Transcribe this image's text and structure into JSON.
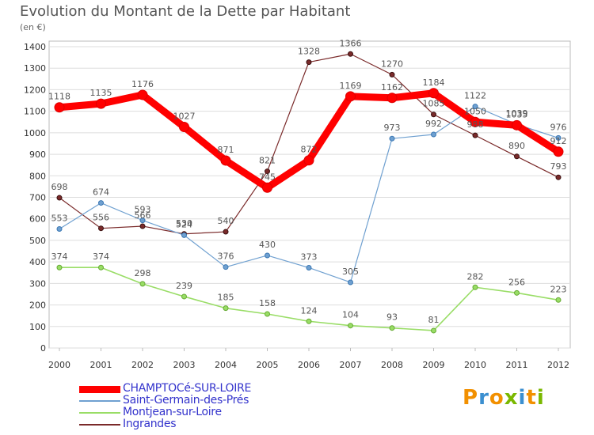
{
  "header": {
    "title": "Evolution du Montant de la Dette par Habitant",
    "unit": "(en €)"
  },
  "logo": {
    "text": "Proxiti",
    "colors": [
      "#f29000",
      "#3b8fd0",
      "#f29000",
      "#7ab800",
      "#3b8fd0",
      "#f29000",
      "#7ab800"
    ]
  },
  "colors": {
    "background": "#ffffff",
    "chart_border": "#bbbbbb",
    "grid": "#dddddd",
    "axis_text": "#333333",
    "label_text": "#555555"
  },
  "chart_data": {
    "type": "line",
    "title": "Evolution du Montant de la Dette par Habitant",
    "ylabel": "(en €)",
    "xlabel": "",
    "ylim": [
      0,
      1400
    ],
    "yticks": [
      0,
      100,
      200,
      300,
      400,
      500,
      600,
      700,
      800,
      900,
      1000,
      1100,
      1200,
      1300,
      1400
    ],
    "grid": true,
    "legend": "bottom-left",
    "categories": [
      "2000",
      "2001",
      "2002",
      "2003",
      "2004",
      "2005",
      "2006",
      "2007",
      "2008",
      "2009",
      "2010",
      "2011",
      "2012"
    ],
    "series": [
      {
        "name": "CHAMPTOCé-SUR-LOIRE",
        "color": "#ff0000",
        "legend_color": "#3333cc",
        "values": [
          1118,
          1135,
          1176,
          1027,
          871,
          745,
          872,
          1169,
          1162,
          1184,
          1050,
          1035,
          912
        ],
        "labels": [
          "1118",
          "1135",
          "1176",
          "1027",
          "871",
          "745",
          "872",
          "1169",
          "1162",
          "1184",
          "1050",
          "1035",
          "912"
        ]
      },
      {
        "name": "Saint-Germain-des-Prés",
        "color": "#6fa0d0",
        "legend_color": "#3333cc",
        "values": [
          553,
          674,
          593,
          524,
          376,
          430,
          373,
          305,
          973,
          992,
          1122,
          1039,
          976
        ],
        "labels": [
          "553",
          "674",
          "593",
          "524",
          "376",
          "430",
          "373",
          "305",
          "973",
          "992",
          "1122",
          "1039",
          "976"
        ]
      },
      {
        "name": "Montjean-sur-Loire",
        "color": "#99dd66",
        "legend_color": "#3333cc",
        "values": [
          374,
          374,
          298,
          239,
          185,
          158,
          124,
          104,
          93,
          81,
          282,
          256,
          223
        ],
        "labels": [
          "374",
          "374",
          "298",
          "239",
          "185",
          "158",
          "124",
          "104",
          "93",
          "81",
          "282",
          "256",
          "223"
        ]
      },
      {
        "name": "Ingrandes",
        "color": "#7a2a2a",
        "legend_color": "#3333cc",
        "values": [
          698,
          556,
          566,
          530,
          540,
          821,
          1328,
          1366,
          1270,
          1085,
          988,
          890,
          793
        ],
        "labels": [
          "698",
          "556",
          "566",
          "530",
          "540",
          "821",
          "1328",
          "1366",
          "1270",
          "1085",
          "988",
          "890",
          "793"
        ]
      }
    ]
  }
}
